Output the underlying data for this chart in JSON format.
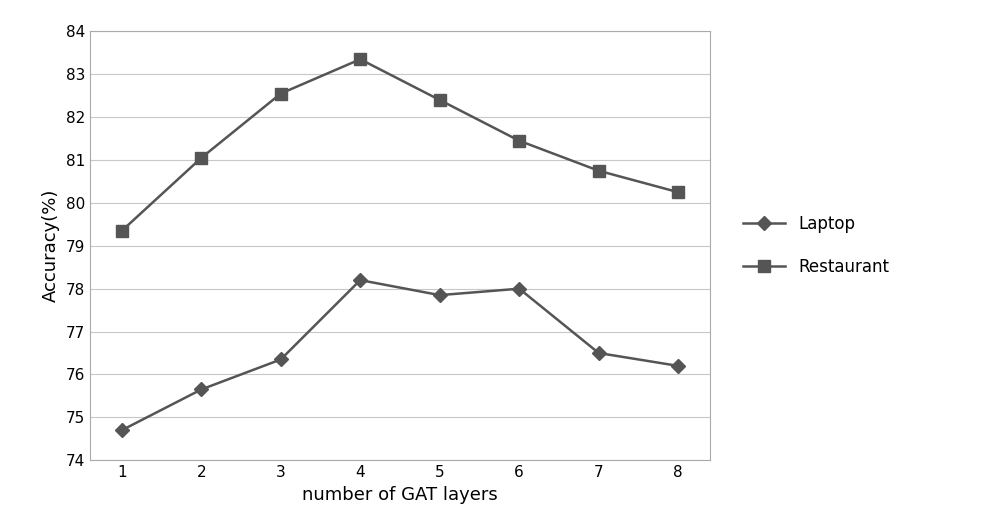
{
  "x": [
    1,
    2,
    3,
    4,
    5,
    6,
    7,
    8
  ],
  "laptop": [
    74.7,
    75.65,
    76.35,
    78.2,
    77.85,
    78.0,
    76.5,
    76.2
  ],
  "restaurant": [
    79.35,
    81.05,
    82.55,
    83.35,
    82.4,
    81.45,
    80.75,
    80.25
  ],
  "laptop_label": "Laptop",
  "restaurant_label": "Restaurant",
  "xlabel": "number of GAT layers",
  "ylabel": "Accuracy(%)",
  "ylim": [
    74,
    84
  ],
  "xlim": [
    0.6,
    8.4
  ],
  "yticks": [
    74,
    75,
    76,
    77,
    78,
    79,
    80,
    81,
    82,
    83,
    84
  ],
  "xticks": [
    1,
    2,
    3,
    4,
    5,
    6,
    7,
    8
  ],
  "line_color": "#555555",
  "background_color": "#ffffff",
  "grid_color": "#c8c8c8"
}
